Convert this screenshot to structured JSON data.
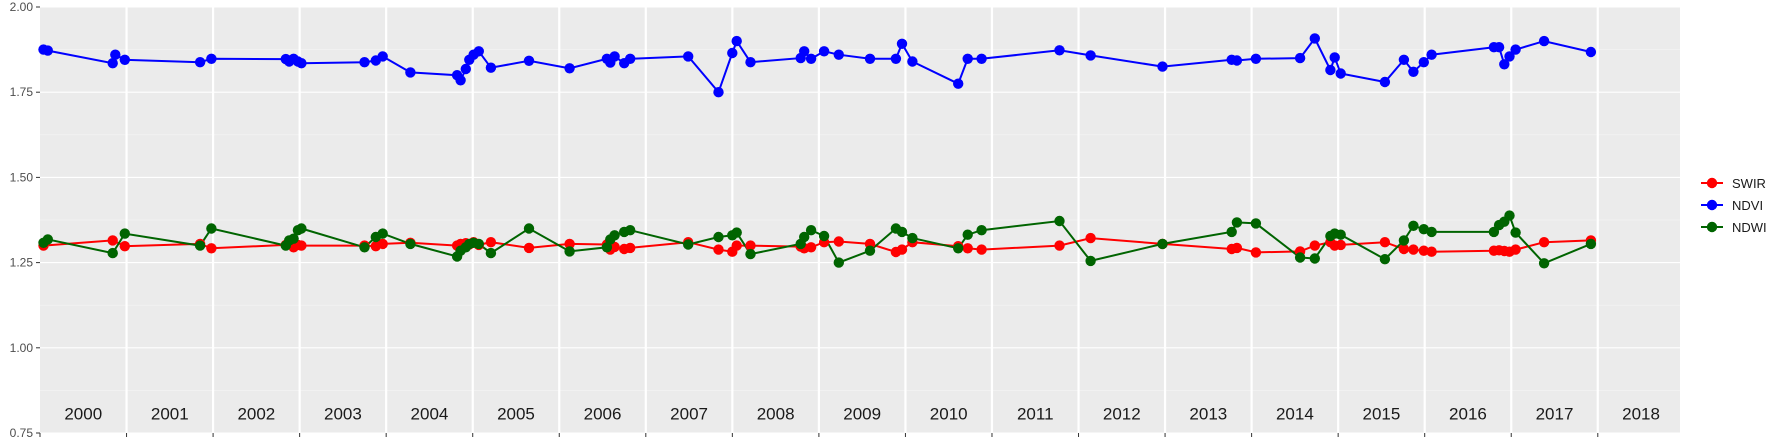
{
  "chart_data": {
    "type": "line",
    "title": "",
    "xlabel": "",
    "ylabel": "",
    "ylim": [
      0.75,
      2.0
    ],
    "xlim": [
      2000,
      2018.95
    ],
    "y_ticks": [
      "0.75",
      "1.00",
      "1.25",
      "1.50",
      "1.75",
      "2.00"
    ],
    "year_labels": [
      "2000",
      "2001",
      "2002",
      "2003",
      "2004",
      "2005",
      "2006",
      "2007",
      "2008",
      "2009",
      "2010",
      "2011",
      "2012",
      "2013",
      "2014",
      "2015",
      "2016",
      "2017",
      "2018"
    ],
    "grid": true,
    "legend_position": "right",
    "legend": [
      {
        "label": "SWIR",
        "color": "#ff0000"
      },
      {
        "label": "NDVI",
        "color": "#0000ff"
      },
      {
        "label": "NDWI",
        "color": "#006400"
      }
    ],
    "series": [
      {
        "name": "NDVI",
        "color": "#0000ff",
        "x": [
          2000.04,
          2000.09,
          2000.84,
          2000.87,
          2000.98,
          2001.85,
          2001.98,
          2002.84,
          2002.88,
          2002.93,
          2002.98,
          2003.02,
          2003.75,
          2003.88,
          2003.96,
          2004.28,
          2004.82,
          2004.86,
          2004.92,
          2004.96,
          2005.01,
          2005.07,
          2005.21,
          2005.65,
          2006.12,
          2006.55,
          2006.59,
          2006.64,
          2006.75,
          2006.82,
          2007.49,
          2007.84,
          2008.0,
          2008.05,
          2008.21,
          2008.79,
          2008.83,
          2008.91,
          2009.06,
          2009.23,
          2009.59,
          2009.89,
          2009.96,
          2010.08,
          2010.61,
          2010.72,
          2010.88,
          2011.78,
          2012.14,
          2012.97,
          2013.77,
          2013.83,
          2014.05,
          2014.56,
          2014.73,
          2014.91,
          2014.96,
          2015.03,
          2015.54,
          2015.76,
          2015.87,
          2015.99,
          2016.08,
          2016.8,
          2016.86,
          2016.92,
          2016.98,
          2017.05,
          2017.38,
          2017.92
        ],
        "values": [
          1.875,
          1.872,
          1.835,
          1.86,
          1.845,
          1.838,
          1.848,
          1.847,
          1.84,
          1.848,
          1.84,
          1.835,
          1.838,
          1.843,
          1.855,
          1.808,
          1.8,
          1.785,
          1.818,
          1.845,
          1.86,
          1.87,
          1.822,
          1.842,
          1.82,
          1.848,
          1.837,
          1.855,
          1.835,
          1.848,
          1.855,
          1.75,
          1.865,
          1.9,
          1.838,
          1.85,
          1.87,
          1.848,
          1.87,
          1.86,
          1.848,
          1.848,
          1.892,
          1.84,
          1.775,
          1.848,
          1.848,
          1.873,
          1.858,
          1.825,
          1.845,
          1.843,
          1.848,
          1.85,
          1.908,
          1.815,
          1.852,
          1.805,
          1.78,
          1.845,
          1.81,
          1.838,
          1.86,
          1.882,
          1.882,
          1.832,
          1.855,
          1.875,
          1.9,
          1.868
        ]
      },
      {
        "name": "SWIR",
        "color": "#ff0000",
        "x": [
          2000.04,
          2000.84,
          2000.98,
          2001.85,
          2001.98,
          2002.84,
          2002.88,
          2002.93,
          2002.98,
          2003.02,
          2003.75,
          2003.88,
          2003.96,
          2004.28,
          2004.82,
          2004.86,
          2004.92,
          2004.96,
          2005.01,
          2005.07,
          2005.21,
          2005.65,
          2006.12,
          2006.55,
          2006.59,
          2006.64,
          2006.75,
          2006.82,
          2007.49,
          2007.84,
          2008.0,
          2008.05,
          2008.21,
          2008.79,
          2008.83,
          2008.91,
          2009.06,
          2009.23,
          2009.59,
          2009.89,
          2009.96,
          2010.08,
          2010.61,
          2010.72,
          2010.88,
          2011.78,
          2012.14,
          2012.97,
          2013.77,
          2013.83,
          2014.05,
          2014.56,
          2014.73,
          2014.91,
          2014.96,
          2015.03,
          2015.54,
          2015.76,
          2015.87,
          2015.99,
          2016.08,
          2016.8,
          2016.86,
          2016.92,
          2016.98,
          2017.05,
          2017.38,
          2017.92
        ],
        "values": [
          1.3,
          1.315,
          1.298,
          1.305,
          1.292,
          1.302,
          1.305,
          1.295,
          1.302,
          1.3,
          1.3,
          1.298,
          1.305,
          1.308,
          1.3,
          1.305,
          1.307,
          1.303,
          1.31,
          1.302,
          1.31,
          1.293,
          1.305,
          1.303,
          1.288,
          1.296,
          1.29,
          1.293,
          1.31,
          1.288,
          1.282,
          1.3,
          1.3,
          1.297,
          1.292,
          1.295,
          1.31,
          1.312,
          1.305,
          1.281,
          1.288,
          1.31,
          1.298,
          1.292,
          1.288,
          1.3,
          1.322,
          1.305,
          1.29,
          1.293,
          1.28,
          1.283,
          1.3,
          1.31,
          1.3,
          1.302,
          1.31,
          1.29,
          1.288,
          1.285,
          1.282,
          1.285,
          1.286,
          1.284,
          1.282,
          1.288,
          1.31,
          1.315
        ]
      },
      {
        "name": "NDWI",
        "color": "#006400",
        "x": [
          2000.04,
          2000.09,
          2000.84,
          2000.98,
          2001.85,
          2001.98,
          2002.84,
          2002.88,
          2002.93,
          2002.98,
          2003.02,
          2003.75,
          2003.88,
          2003.96,
          2004.28,
          2004.82,
          2004.86,
          2004.92,
          2004.96,
          2005.01,
          2005.07,
          2005.21,
          2005.65,
          2006.12,
          2006.55,
          2006.59,
          2006.64,
          2006.75,
          2006.82,
          2007.49,
          2007.84,
          2008.0,
          2008.05,
          2008.21,
          2008.79,
          2008.83,
          2008.91,
          2009.06,
          2009.23,
          2009.59,
          2009.89,
          2009.96,
          2010.08,
          2010.61,
          2010.72,
          2010.88,
          2011.78,
          2012.14,
          2012.97,
          2013.77,
          2013.83,
          2014.05,
          2014.56,
          2014.73,
          2014.91,
          2014.96,
          2015.03,
          2015.54,
          2015.76,
          2015.87,
          2015.99,
          2016.08,
          2016.8,
          2016.86,
          2016.92,
          2016.98,
          2017.05,
          2017.38,
          2017.92
        ],
        "values": [
          1.308,
          1.318,
          1.278,
          1.335,
          1.3,
          1.35,
          1.3,
          1.315,
          1.32,
          1.345,
          1.35,
          1.295,
          1.325,
          1.335,
          1.305,
          1.268,
          1.285,
          1.295,
          1.305,
          1.308,
          1.305,
          1.278,
          1.35,
          1.283,
          1.295,
          1.318,
          1.33,
          1.34,
          1.345,
          1.303,
          1.325,
          1.33,
          1.338,
          1.275,
          1.305,
          1.325,
          1.345,
          1.328,
          1.25,
          1.285,
          1.35,
          1.34,
          1.322,
          1.292,
          1.332,
          1.345,
          1.372,
          1.255,
          1.305,
          1.34,
          1.368,
          1.365,
          1.265,
          1.262,
          1.328,
          1.335,
          1.332,
          1.26,
          1.315,
          1.358,
          1.348,
          1.34,
          1.34,
          1.36,
          1.37,
          1.388,
          1.338,
          1.248,
          1.305
        ]
      }
    ]
  }
}
